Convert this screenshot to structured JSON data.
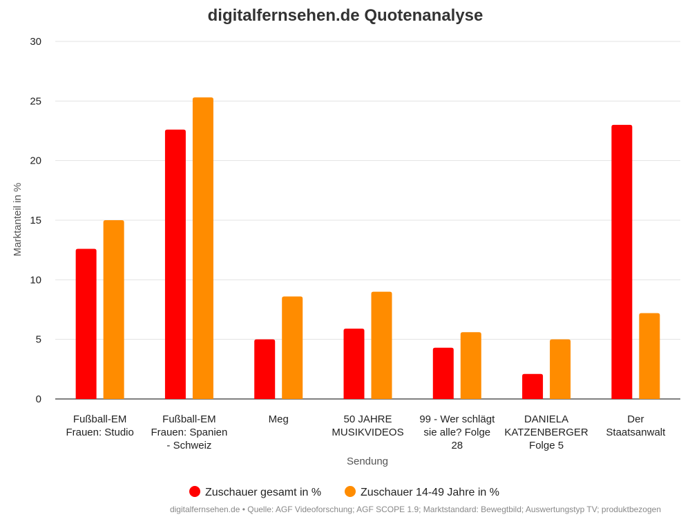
{
  "chart_data": {
    "type": "bar",
    "title": "digitalfernsehen.de Quotenanalyse",
    "xlabel": "Sendung",
    "ylabel": "Marktanteil in %",
    "ylim": [
      0,
      30
    ],
    "yticks": [
      0,
      5,
      10,
      15,
      20,
      25,
      30
    ],
    "grid": true,
    "legend_position": "bottom",
    "categories": [
      [
        "Fußball-EM",
        "Frauen: Studio"
      ],
      [
        "Fußball-EM",
        "Frauen: Spanien",
        "- Schweiz"
      ],
      [
        "Meg"
      ],
      [
        "50 JAHRE",
        "MUSIKVIDEOS"
      ],
      [
        "99 - Wer schlägt",
        "sie alle? Folge",
        "28"
      ],
      [
        "DANIELA",
        "KATZENBERGER",
        "Folge 5"
      ],
      [
        "Der",
        "Staatsanwalt"
      ]
    ],
    "series": [
      {
        "name": "Zuschauer gesamt in %",
        "color": "#ff0000",
        "values": [
          12.6,
          22.6,
          5.0,
          5.9,
          4.3,
          2.1,
          23.0
        ]
      },
      {
        "name": "Zuschauer 14-49 Jahre in %",
        "color": "#ff8c00",
        "values": [
          15.0,
          25.3,
          8.6,
          9.0,
          5.6,
          5.0,
          7.2
        ]
      }
    ]
  },
  "credits": "digitalfernsehen.de • Quelle: AGF Videoforschung; AGF SCOPE 1.9; Marktstandard: Bewegtbild; Auswertungstyp TV; produktbezogen"
}
